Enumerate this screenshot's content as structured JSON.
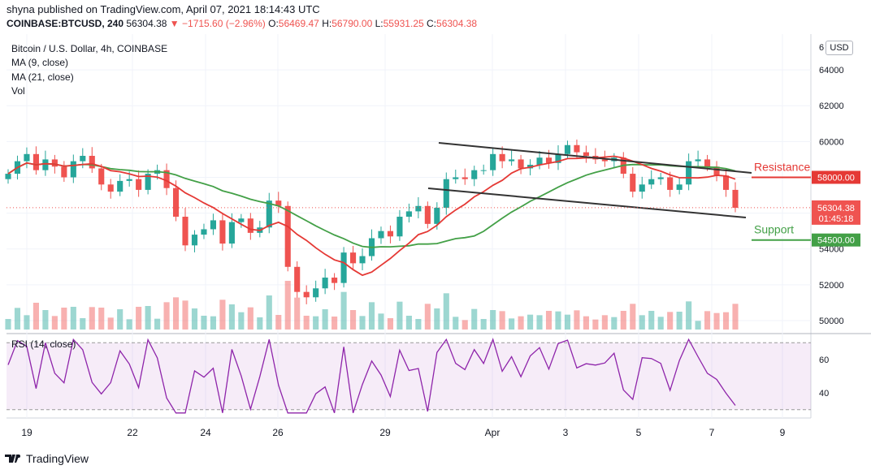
{
  "header": {
    "published": "shyna published on TradingView.com, April 07, 2021 18:14:43 UTC",
    "symbol_line": "COINBASE:BTCUSD, 240",
    "last": "56304.38",
    "change": "−1715.60 (−2.96%)",
    "o_label": "O:",
    "o": "56469.47",
    "h_label": "H:",
    "h": "56790.00",
    "l_label": "L:",
    "l": "55931.25",
    "c_label": "C:",
    "c": "56304.38"
  },
  "legend": {
    "title": "Bitcoin / U.S. Dollar, 4h, COINBASE",
    "ma9": "MA (9, close)",
    "ma21": "MA (21, close)",
    "vol": "Vol",
    "rsi": "RSI (14, close)"
  },
  "currency": "USD",
  "branding": "TradingView",
  "colors": {
    "up": "#26a69a",
    "down": "#ef5350",
    "ma9": "#e53935",
    "ma21": "#43a047",
    "rsi": "#8e24aa",
    "trend": "#333333"
  },
  "chart_data": {
    "type": "candlestick",
    "title": "Bitcoin / U.S. Dollar, 4h, COINBASE",
    "y_ticks": [
      50000,
      52000,
      54000,
      56000,
      58000,
      60000,
      62000,
      64000
    ],
    "ylim": [
      49500,
      66000
    ],
    "x_labels": [
      "19",
      "22",
      "24",
      "26",
      "29",
      "Apr",
      "3",
      "5",
      "7",
      "9"
    ],
    "last_price_label": "56304.38",
    "countdown_label": "01:45:18",
    "annotations": [
      {
        "text": "Resistance",
        "level_label": "58000.00",
        "level": 58000,
        "color": "#e53935"
      },
      {
        "text": "Support",
        "level_label": "54500.00",
        "level": 54500,
        "color": "#43a047"
      }
    ],
    "top_tick_partial": "6",
    "close_series": [
      58200,
      58900,
      59300,
      58400,
      59000,
      58600,
      58000,
      58900,
      59200,
      58500,
      57600,
      57200,
      57800,
      57900,
      57300,
      58200,
      58400,
      57400,
      55800,
      54200,
      54800,
      55100,
      55600,
      54300,
      55500,
      55700,
      54900,
      55200,
      56700,
      56400,
      53000,
      51600,
      51300,
      51800,
      52400,
      52100,
      53800,
      53200,
      53600,
      54600,
      55000,
      54700,
      55800,
      56100,
      56400,
      55400,
      56300,
      57900,
      58000,
      57900,
      58400,
      58400,
      59300,
      58900,
      59000,
      58500,
      58700,
      59100,
      58800,
      59300,
      59800,
      59400,
      59200,
      59000,
      58900,
      59100,
      58200,
      57200,
      57600,
      57900,
      58000,
      57300,
      57600,
      58900,
      59000,
      58600,
      58100,
      57300,
      56300
    ],
    "rsi": {
      "ylim": [
        25,
        75
      ],
      "ticks": [
        40,
        60
      ],
      "bands": [
        30,
        70
      ]
    }
  }
}
